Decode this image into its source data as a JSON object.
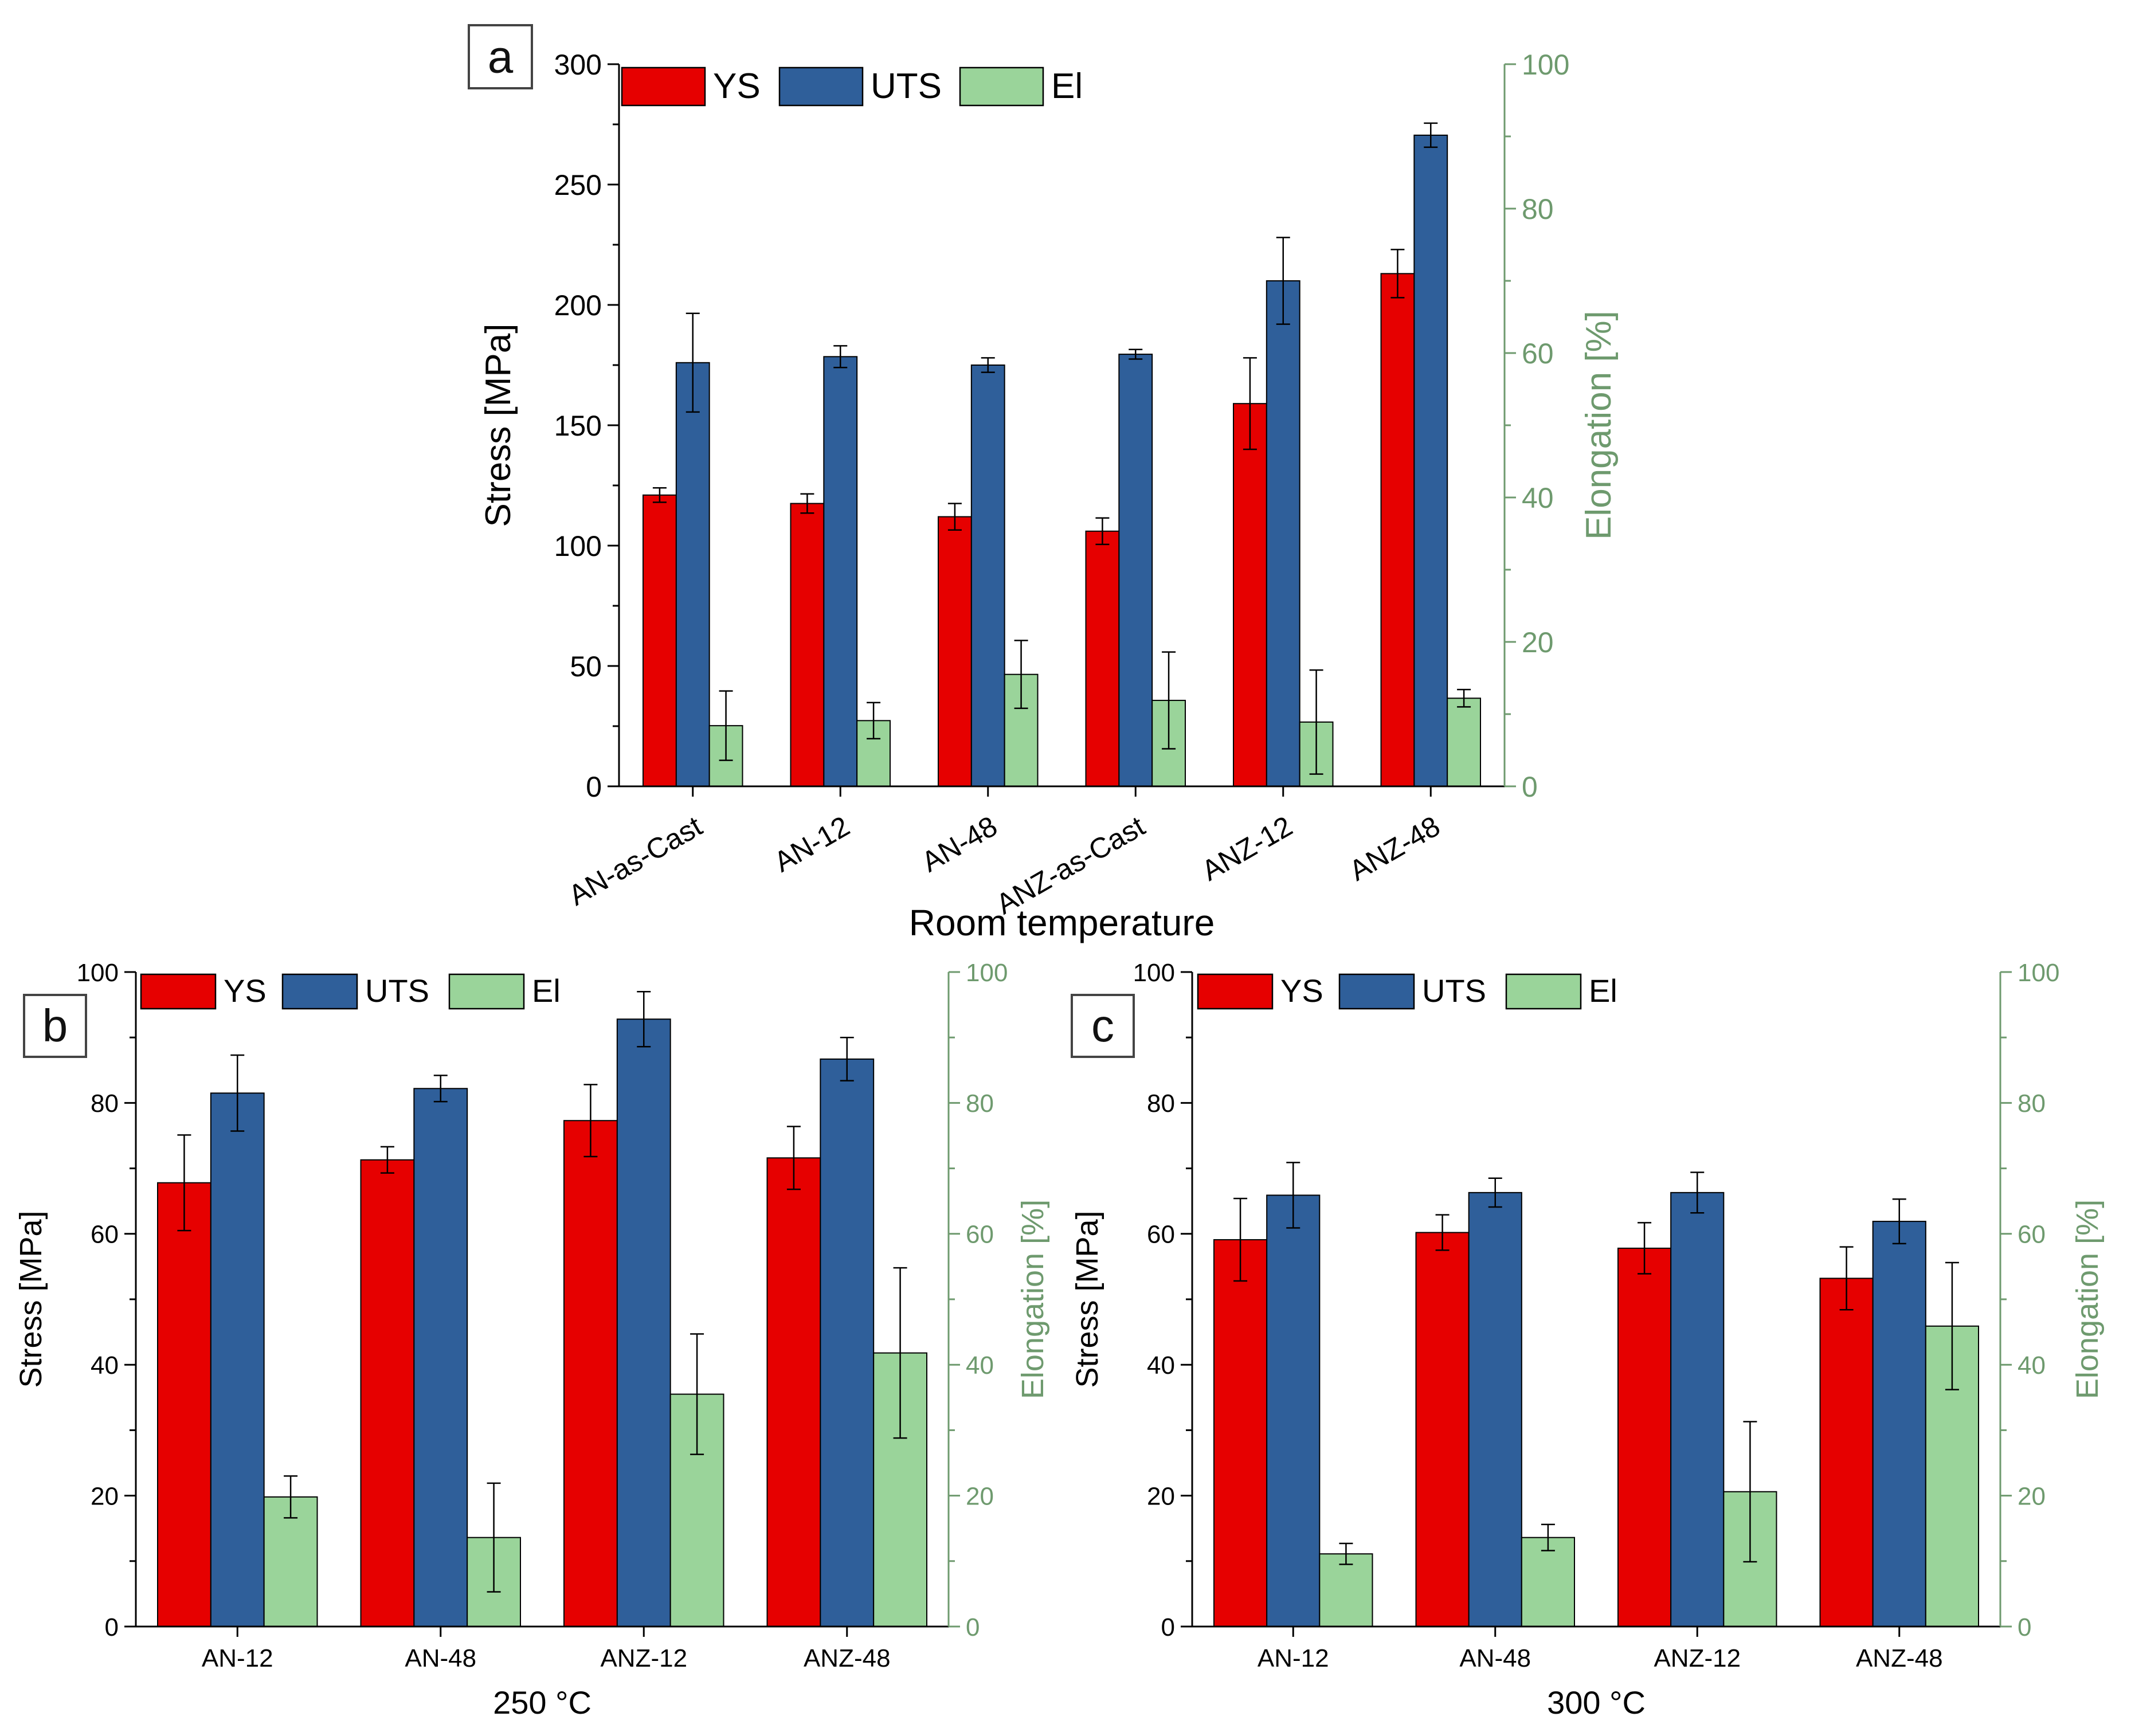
{
  "colors": {
    "ys": "#e60000",
    "uts": "#2f5f9a",
    "el": "#9ad49a",
    "right_axis": "#6e9a6e",
    "axis": "#000000"
  },
  "chart_data": [
    {
      "type": "bar",
      "panel_label": "a",
      "title": "",
      "xlabel": "Room temperature",
      "ylabel": "Stress [MPa]",
      "y2label": "Elongation [%]",
      "ylim": [
        0,
        300
      ],
      "y2lim": [
        0,
        100
      ],
      "yticks": [
        "0",
        "50",
        "100",
        "150",
        "200",
        "250",
        "300"
      ],
      "y2ticks": [
        "0",
        "20",
        "40",
        "60",
        "80",
        "100"
      ],
      "categories": [
        "AN-as-Cast",
        "AN-12",
        "AN-48",
        "ANZ-as-Cast",
        "ANZ-12",
        "ANZ-48"
      ],
      "legend": [
        "YS",
        "UTS",
        "El"
      ],
      "series": [
        {
          "name": "YS",
          "axis": "left",
          "values": [
            121,
            117.5,
            112,
            106,
            159,
            213
          ],
          "errors": [
            3,
            4,
            5.5,
            5.5,
            19,
            10
          ]
        },
        {
          "name": "UTS",
          "axis": "left",
          "values": [
            176,
            178.5,
            175,
            179.5,
            210,
            270.5
          ],
          "errors": [
            20.5,
            4.5,
            3,
            2,
            18,
            5
          ]
        },
        {
          "name": "El",
          "axis": "right",
          "values": [
            8.4,
            9.1,
            15.5,
            11.9,
            8.9,
            12.2
          ],
          "errors": [
            4.8,
            2.5,
            4.7,
            6.7,
            7.2,
            1.2
          ]
        }
      ]
    },
    {
      "type": "bar",
      "panel_label": "b",
      "title": "",
      "xlabel": "250 °C",
      "ylabel": "Stress [MPa]",
      "y2label": "Elongation [%]",
      "ylim": [
        0,
        100
      ],
      "y2lim": [
        0,
        100
      ],
      "yticks": [
        "0",
        "20",
        "40",
        "60",
        "80",
        "100"
      ],
      "y2ticks": [
        "0",
        "20",
        "40",
        "60",
        "80",
        "100"
      ],
      "categories": [
        "AN-12",
        "AN-48",
        "ANZ-12",
        "ANZ-48"
      ],
      "legend": [
        "YS",
        "UTS",
        "El"
      ],
      "series": [
        {
          "name": "YS",
          "axis": "left",
          "values": [
            67.8,
            71.3,
            77.3,
            71.6
          ],
          "errors": [
            7.3,
            2,
            5.5,
            4.8
          ]
        },
        {
          "name": "UTS",
          "axis": "left",
          "values": [
            81.5,
            82.2,
            92.8,
            86.7
          ],
          "errors": [
            5.8,
            2,
            4.2,
            3.3
          ]
        },
        {
          "name": "El",
          "axis": "right",
          "values": [
            19.8,
            13.6,
            35.5,
            41.8
          ],
          "errors": [
            3.2,
            8.3,
            9.2,
            13
          ]
        }
      ]
    },
    {
      "type": "bar",
      "panel_label": "c",
      "title": "",
      "xlabel": "300 °C",
      "ylabel": "Stress [MPa]",
      "y2label": "Elongation [%]",
      "ylim": [
        0,
        100
      ],
      "y2lim": [
        0,
        100
      ],
      "yticks": [
        "0",
        "20",
        "40",
        "60",
        "80",
        "100"
      ],
      "y2ticks": [
        "0",
        "20",
        "40",
        "60",
        "80",
        "100"
      ],
      "categories": [
        "AN-12",
        "AN-48",
        "ANZ-12",
        "ANZ-48"
      ],
      "legend": [
        "YS",
        "UTS",
        "El"
      ],
      "series": [
        {
          "name": "YS",
          "axis": "left",
          "values": [
            59.1,
            60.2,
            57.8,
            53.2
          ],
          "errors": [
            6.3,
            2.7,
            3.9,
            4.8
          ]
        },
        {
          "name": "UTS",
          "axis": "left",
          "values": [
            65.9,
            66.3,
            66.3,
            61.9
          ],
          "errors": [
            5,
            2.2,
            3.1,
            3.4
          ]
        },
        {
          "name": "El",
          "axis": "right",
          "values": [
            11.1,
            13.6,
            20.6,
            45.9
          ],
          "errors": [
            1.6,
            2,
            10.7,
            9.7
          ]
        }
      ]
    }
  ]
}
